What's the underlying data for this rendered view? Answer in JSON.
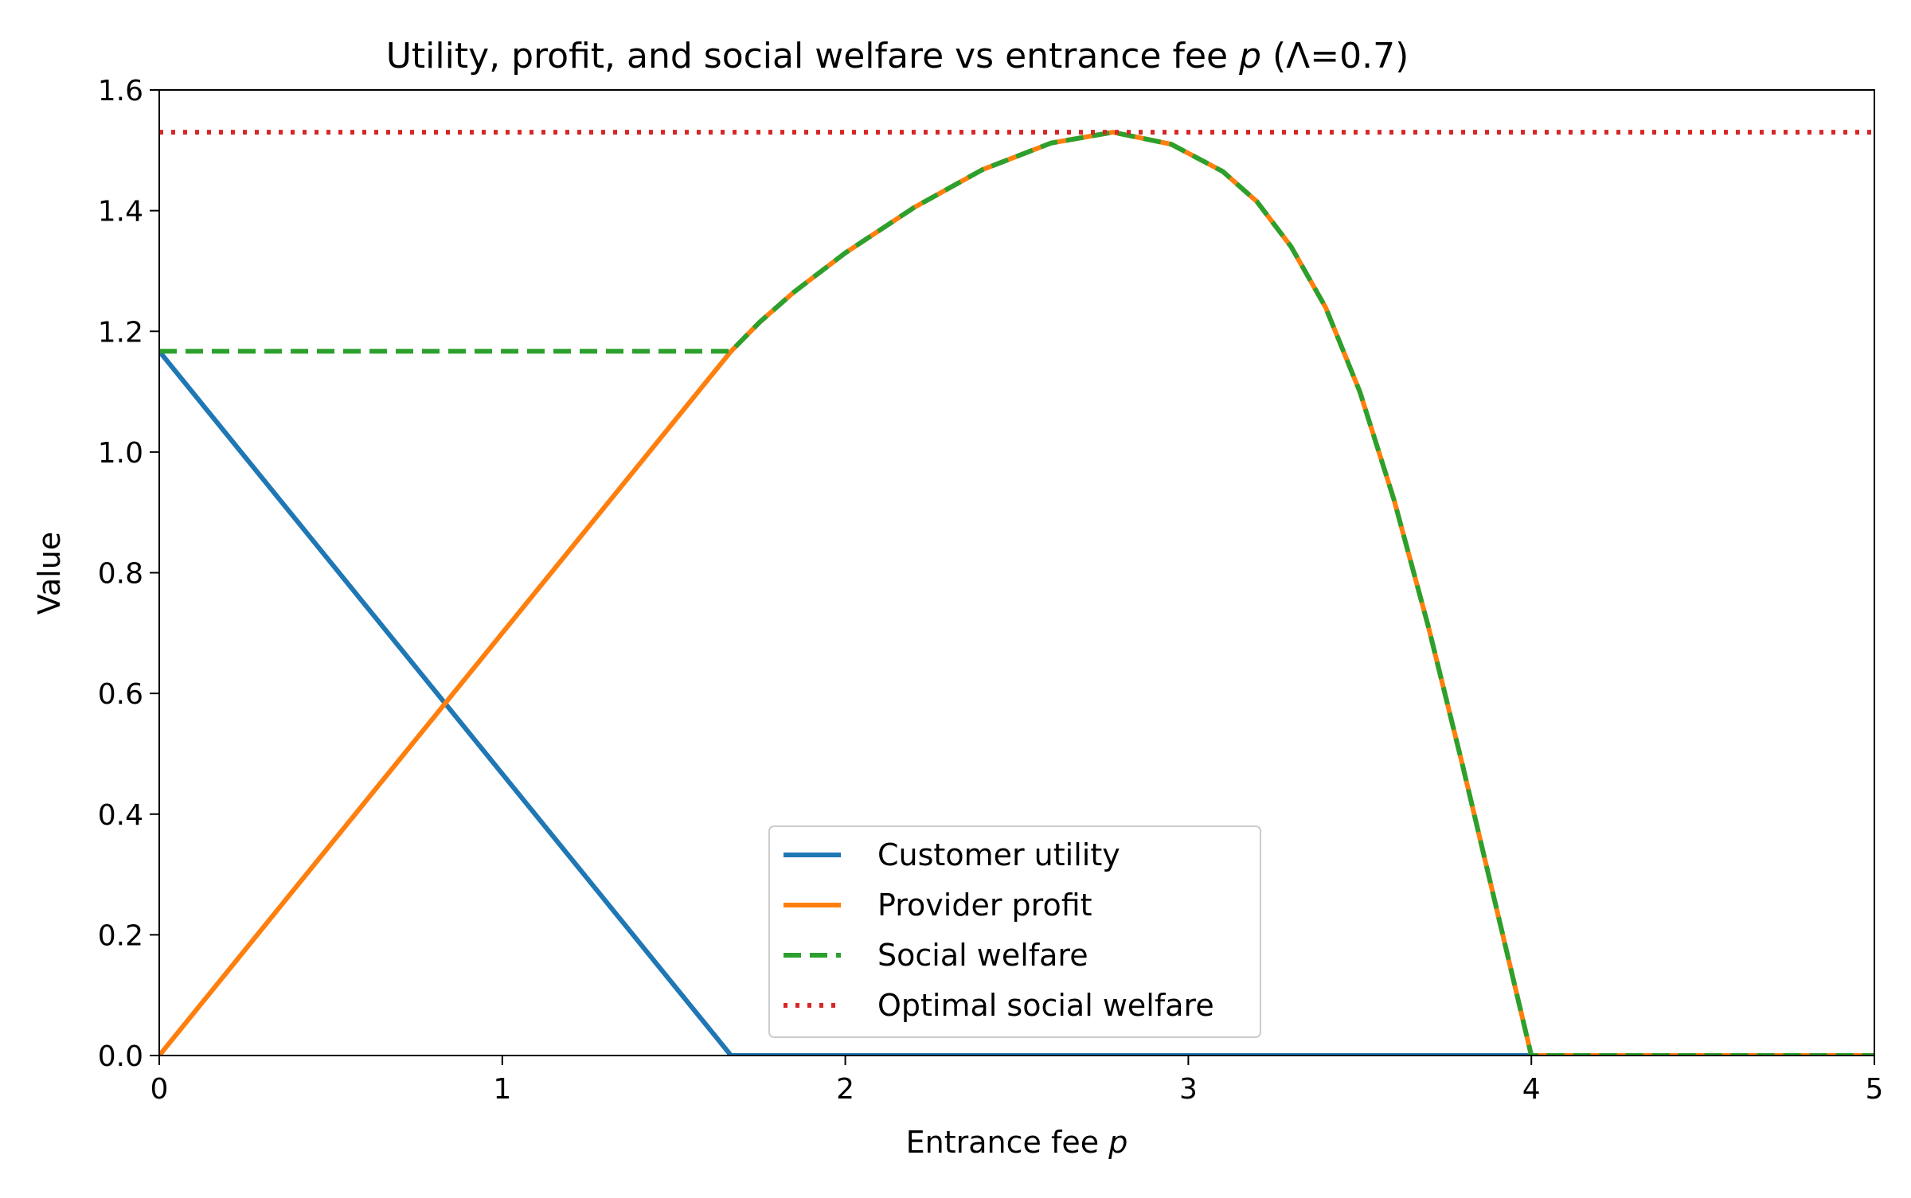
{
  "chart_data": {
    "type": "line",
    "title": "Utility, profit, and social welfare vs entrance fee p (Λ=0.7)",
    "title_parts": [
      "Utility, profit, and social welfare vs entrance fee ",
      "p",
      " (Λ=0.7)"
    ],
    "xlabel": "Entrance fee p",
    "xlabel_parts": [
      "Entrance fee ",
      "p"
    ],
    "ylabel": "Value",
    "xlim": [
      0,
      5
    ],
    "ylim": [
      0,
      1.6
    ],
    "x_ticks": [
      "0",
      "1",
      "2",
      "3",
      "4",
      "5"
    ],
    "y_ticks": [
      "0.0",
      "0.2",
      "0.4",
      "0.6",
      "0.8",
      "1.0",
      "1.2",
      "1.4",
      "1.6"
    ],
    "grid": false,
    "legend_position": "lower-center",
    "series": [
      {
        "name": "Customer utility",
        "color": "#1f77b4",
        "style": "solid",
        "x": [
          0,
          1.667,
          5
        ],
        "y": [
          1.167,
          0,
          0
        ]
      },
      {
        "name": "Provider profit",
        "color": "#ff7f0e",
        "style": "solid",
        "x": [
          0,
          1.667,
          1.75,
          1.85,
          2.0,
          2.2,
          2.4,
          2.6,
          2.78,
          2.95,
          3.1,
          3.2,
          3.3,
          3.4,
          3.5,
          3.6,
          3.7,
          3.8,
          3.9,
          4.0,
          5
        ],
        "y": [
          0,
          1.167,
          1.215,
          1.265,
          1.33,
          1.405,
          1.468,
          1.512,
          1.53,
          1.51,
          1.465,
          1.415,
          1.34,
          1.24,
          1.1,
          0.92,
          0.71,
          0.48,
          0.24,
          0,
          0
        ]
      },
      {
        "name": "Social welfare",
        "color": "#2ca02c",
        "style": "dashed",
        "x": [
          0,
          1.667,
          1.75,
          1.85,
          2.0,
          2.2,
          2.4,
          2.6,
          2.78,
          2.95,
          3.1,
          3.2,
          3.3,
          3.4,
          3.5,
          3.6,
          3.7,
          3.8,
          3.9,
          4.0,
          5
        ],
        "y": [
          1.167,
          1.167,
          1.215,
          1.265,
          1.33,
          1.405,
          1.468,
          1.512,
          1.53,
          1.51,
          1.465,
          1.415,
          1.34,
          1.24,
          1.1,
          0.92,
          0.71,
          0.48,
          0.24,
          0,
          0
        ]
      },
      {
        "name": "Optimal social welfare",
        "color": "#d62728",
        "style": "dotted",
        "x": [
          0,
          5
        ],
        "y": [
          1.53,
          1.53
        ]
      }
    ]
  }
}
